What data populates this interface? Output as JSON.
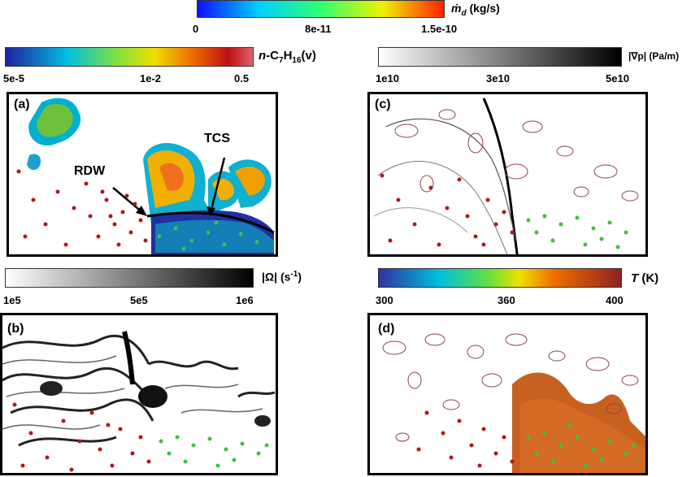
{
  "colorbars": {
    "md": {
      "label_main": "ṁ",
      "label_sub": "d",
      "label_unit": "(kg/s)",
      "ticks": [
        "0",
        "8e-11",
        "1.5e-10"
      ],
      "colors": [
        "#1010ff",
        "#00d0ff",
        "#30ff70",
        "#f0f000",
        "#ff2000"
      ]
    },
    "heptane": {
      "label_italic": "n",
      "label_rest": "-C",
      "sub1": "7",
      "mid": "H",
      "sub2": "16",
      "tail": "(v)",
      "ticks": [
        "5e-5",
        "1e-2",
        "0.5"
      ],
      "colors": [
        "#2020a0",
        "#00c0e0",
        "#80e040",
        "#f0e000",
        "#f07000",
        "#c01010",
        "#e06070"
      ]
    },
    "gradp": {
      "label": "|∇p| (Pa/m)",
      "ticks": [
        "1e10",
        "3e10",
        "5e10"
      ],
      "colors": [
        "#ffffff",
        "#000000"
      ]
    },
    "omega": {
      "label_main": "|Ω| (s",
      "label_sup": "-1",
      "label_end": ")",
      "ticks": [
        "1e5",
        "5e5",
        "1e6"
      ],
      "colors": [
        "#ffffff",
        "#000000"
      ]
    },
    "temp": {
      "label_italic": "T",
      "label_unit": " (K)",
      "ticks": [
        "300",
        "360",
        "400"
      ],
      "colors": [
        "#3030a0",
        "#00c0e0",
        "#60e040",
        "#f0e000",
        "#f07000",
        "#902020"
      ]
    }
  },
  "panels": {
    "a": {
      "label": "(a)",
      "annotations": [
        "TCS",
        "RDW"
      ]
    },
    "b": {
      "label": "(b)"
    },
    "c": {
      "label": "(c)"
    },
    "d": {
      "label": "(d)"
    }
  }
}
